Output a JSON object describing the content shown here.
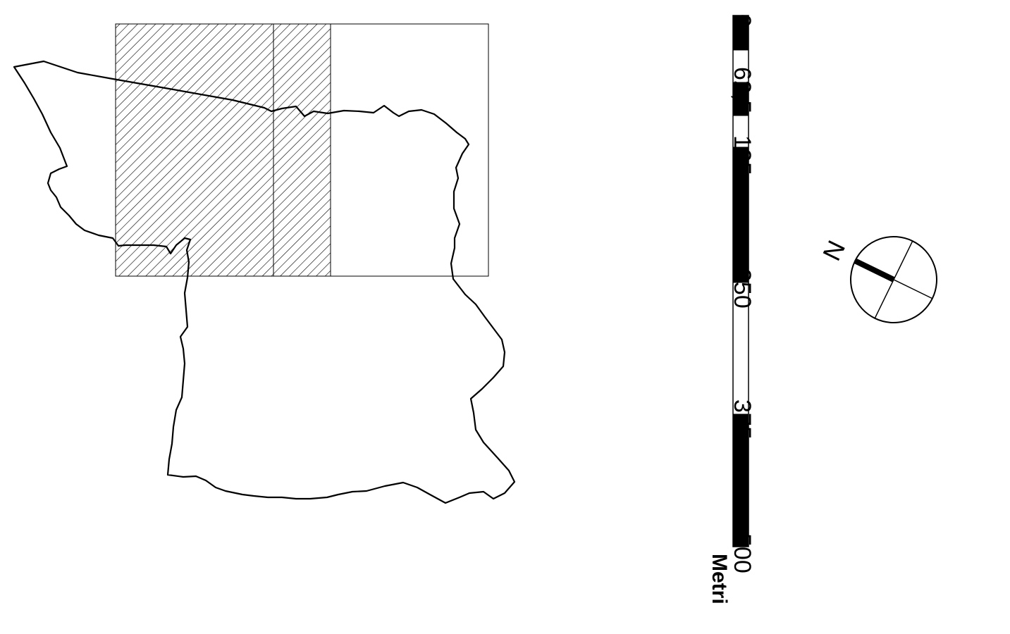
{
  "map": {
    "area_outline": "municipality-boundary",
    "tiles": [
      {
        "name": "tile-left",
        "hatched": true
      },
      {
        "name": "tile-middle",
        "hatched": true
      },
      {
        "name": "tile-right",
        "hatched": false
      }
    ],
    "colors": {
      "line": "#000000",
      "background": "#ffffff",
      "hatch": "#000000"
    }
  },
  "scalebar": {
    "labels": [
      "0",
      "62,5",
      "125",
      "250",
      "375",
      "500"
    ],
    "unit": "Metri"
  },
  "north_arrow": {
    "label": "N",
    "icon": "north-arrow-compass"
  }
}
